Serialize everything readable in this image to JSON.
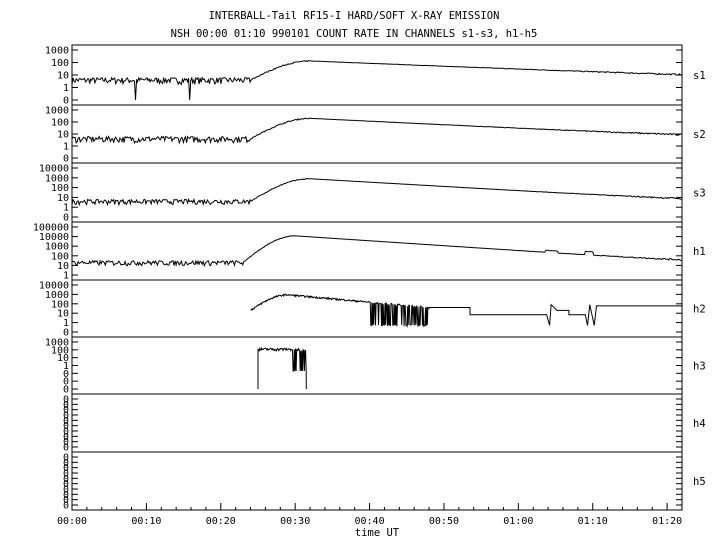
{
  "chart_data": {
    "type": "line",
    "title": "INTERBALL-Tail RF15-I HARD/SOFT X-RAY EMISSION",
    "subtitle": "NSH 00:00 01:10 990101  COUNT RATE IN CHANNELS s1-s3, h1-h5",
    "xlabel": "time UT",
    "x_ticks": [
      "00:00",
      "00:10",
      "00:20",
      "00:30",
      "00:40",
      "00:50",
      "01:00",
      "01:10",
      "01:20"
    ],
    "x_range_minutes": [
      0,
      82
    ],
    "y_scale": "log",
    "grid": false,
    "panels": [
      {
        "name": "s1",
        "y_ticks": [
          "1000",
          "100",
          "10",
          "1",
          "0"
        ],
        "series": {
          "type": "flare",
          "baseline": 4,
          "rise_start": 24,
          "peak_time": 32,
          "peak": 130,
          "end": 82,
          "end_value": 8
        }
      },
      {
        "name": "s2",
        "y_ticks": [
          "1000",
          "100",
          "10",
          "1",
          "0"
        ],
        "series": {
          "type": "flare",
          "baseline": 4,
          "rise_start": 24,
          "peak_time": 32,
          "peak": 200,
          "end": 82,
          "end_value": 6
        }
      },
      {
        "name": "s3",
        "y_ticks": [
          "10000",
          "1000",
          "100",
          "10",
          "1",
          "0"
        ],
        "series": {
          "type": "flare",
          "baseline": 4,
          "rise_start": 24,
          "peak_time": 32,
          "peak": 800,
          "end": 82,
          "end_value": 5
        }
      },
      {
        "name": "h1",
        "y_ticks": [
          "100000",
          "10000",
          "1000",
          "100",
          "10",
          "1"
        ],
        "series": {
          "type": "flare",
          "baseline": 20,
          "rise_start": 23,
          "peak_time": 30,
          "peak": 12000,
          "end": 82,
          "end_value": 25
        }
      },
      {
        "name": "h2",
        "y_ticks": [
          "10000",
          "1000",
          "100",
          "10",
          "1",
          "0"
        ],
        "series": {
          "type": "h2",
          "start": 24,
          "peak_time": 29,
          "peak": 900,
          "dropout_end": 48,
          "step_value": 7,
          "end_value": 60
        }
      },
      {
        "name": "h3",
        "y_ticks": [
          "1000",
          "100",
          "10",
          "1",
          "0",
          "0",
          "0"
        ],
        "series": {
          "type": "h3",
          "start": 25,
          "end": 31.5,
          "peak": 120
        }
      },
      {
        "name": "h4",
        "y_ticks": [
          "0",
          "0",
          "0",
          "0",
          "0",
          "0",
          "0",
          "0",
          "0",
          "0"
        ],
        "series": {
          "type": "empty"
        }
      },
      {
        "name": "h5",
        "y_ticks": [
          "0",
          "0",
          "0",
          "0",
          "0",
          "0",
          "0",
          "0",
          "0",
          "0"
        ],
        "series": {
          "type": "empty"
        }
      }
    ]
  }
}
